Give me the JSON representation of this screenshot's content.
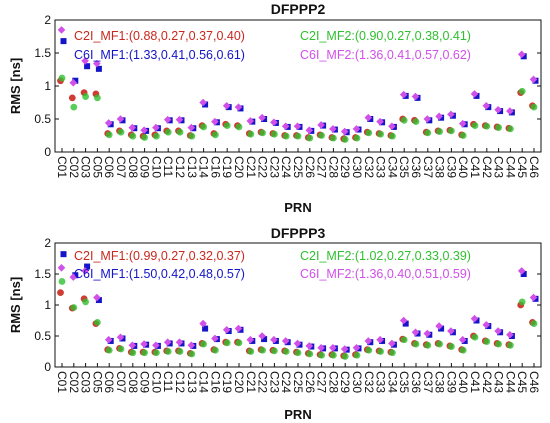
{
  "chart_data": [
    {
      "type": "scatter",
      "title": "DFPPP2",
      "xlabel": "PRN",
      "ylabel": "RMS [ns]",
      "ylim": [
        0,
        2
      ],
      "yticks": [
        "0",
        "0.5",
        "1",
        "1.5",
        "2"
      ],
      "grid": false,
      "legend_location": "top",
      "categories": [
        "C01",
        "C02",
        "C03",
        "C05",
        "C06",
        "C07",
        "C08",
        "C09",
        "C10",
        "C11",
        "C12",
        "C13",
        "C14",
        "C16",
        "C19",
        "C20",
        "C21",
        "C22",
        "C23",
        "C24",
        "C25",
        "C26",
        "C27",
        "C28",
        "C29",
        "C30",
        "C32",
        "C33",
        "C34",
        "C35",
        "C36",
        "C37",
        "C38",
        "C39",
        "C40",
        "C41",
        "C42",
        "C43",
        "C44",
        "C45",
        "C46"
      ],
      "series": [
        {
          "name": "C2I_MF1:(0.88,0.27,0.37,0.40)",
          "color": "#c8281e",
          "marker": "circle",
          "values": [
            1.08,
            0.82,
            0.9,
            0.88,
            0.28,
            0.32,
            0.26,
            0.24,
            0.26,
            0.32,
            0.32,
            0.25,
            0.4,
            0.28,
            0.42,
            0.4,
            0.28,
            0.3,
            0.28,
            0.25,
            0.25,
            0.22,
            0.26,
            0.22,
            0.2,
            0.22,
            0.3,
            0.28,
            0.25,
            0.5,
            0.48,
            0.3,
            0.32,
            0.33,
            0.26,
            0.42,
            0.4,
            0.38,
            0.36,
            0.9,
            0.7
          ]
        },
        {
          "name": "C2I_MF2:(0.90,0.27,0.38,0.41)",
          "color": "#2fbf2f",
          "marker": "circle",
          "values": [
            1.12,
            0.68,
            0.84,
            0.82,
            0.26,
            0.3,
            0.24,
            0.22,
            0.24,
            0.3,
            0.3,
            0.24,
            0.38,
            0.26,
            0.4,
            0.38,
            0.27,
            0.29,
            0.27,
            0.24,
            0.24,
            0.21,
            0.25,
            0.21,
            0.19,
            0.21,
            0.29,
            0.27,
            0.24,
            0.48,
            0.46,
            0.29,
            0.31,
            0.32,
            0.25,
            0.4,
            0.39,
            0.37,
            0.35,
            0.92,
            0.68
          ]
        },
        {
          "name": "C6I_MF1:(1.33,0.41,0.56,0.61)",
          "color": "#1414c8",
          "marker": "square",
          "values": [
            1.68,
            1.08,
            1.3,
            1.26,
            0.42,
            0.48,
            0.36,
            0.32,
            0.36,
            0.48,
            0.48,
            0.36,
            0.72,
            0.45,
            0.68,
            0.66,
            0.46,
            0.5,
            0.44,
            0.38,
            0.38,
            0.32,
            0.4,
            0.34,
            0.3,
            0.34,
            0.5,
            0.45,
            0.38,
            0.85,
            0.82,
            0.48,
            0.52,
            0.55,
            0.42,
            0.85,
            0.68,
            0.62,
            0.6,
            1.45,
            1.08
          ]
        },
        {
          "name": "C6I_MF2:(1.36,0.41,0.57,0.62)",
          "color": "#d050e8",
          "marker": "diamond",
          "values": [
            1.85,
            1.05,
            1.38,
            1.34,
            0.44,
            0.5,
            0.37,
            0.33,
            0.37,
            0.49,
            0.49,
            0.37,
            0.75,
            0.46,
            0.7,
            0.68,
            0.47,
            0.52,
            0.45,
            0.39,
            0.39,
            0.33,
            0.41,
            0.35,
            0.31,
            0.35,
            0.52,
            0.46,
            0.39,
            0.87,
            0.84,
            0.5,
            0.54,
            0.57,
            0.43,
            0.88,
            0.7,
            0.64,
            0.62,
            1.48,
            1.1
          ]
        }
      ]
    },
    {
      "type": "scatter",
      "title": "DFPPP3",
      "xlabel": "PRN",
      "ylabel": "RMS [ns]",
      "ylim": [
        0,
        2
      ],
      "yticks": [
        "0",
        "0.5",
        "1",
        "1.5",
        "2"
      ],
      "grid": false,
      "legend_location": "top",
      "categories": [
        "C01",
        "C02",
        "C03",
        "C05",
        "C06",
        "C07",
        "C08",
        "C09",
        "C10",
        "C11",
        "C12",
        "C13",
        "C14",
        "C16",
        "C19",
        "C20",
        "C21",
        "C22",
        "C23",
        "C24",
        "C25",
        "C26",
        "C27",
        "C28",
        "C29",
        "C30",
        "C32",
        "C33",
        "C34",
        "C35",
        "C36",
        "C37",
        "C38",
        "C39",
        "C40",
        "C41",
        "C42",
        "C43",
        "C44",
        "C45",
        "C46"
      ],
      "series": [
        {
          "name": "C2I_MF1:(0.99,0.27,0.32,0.37)",
          "color": "#c8281e",
          "marker": "circle",
          "values": [
            1.2,
            0.95,
            1.1,
            0.7,
            0.28,
            0.3,
            0.24,
            0.24,
            0.24,
            0.26,
            0.26,
            0.22,
            0.38,
            0.28,
            0.4,
            0.4,
            0.26,
            0.28,
            0.27,
            0.26,
            0.24,
            0.22,
            0.2,
            0.2,
            0.18,
            0.2,
            0.28,
            0.26,
            0.24,
            0.45,
            0.38,
            0.36,
            0.38,
            0.34,
            0.28,
            0.5,
            0.42,
            0.38,
            0.36,
            1.0,
            0.72
          ]
        },
        {
          "name": "C2I_MF2:(1.02,0.27,0.33,0.39)",
          "color": "#2fbf2f",
          "marker": "circle",
          "values": [
            1.38,
            0.96,
            1.05,
            0.72,
            0.27,
            0.29,
            0.23,
            0.23,
            0.23,
            0.25,
            0.25,
            0.21,
            0.37,
            0.27,
            0.39,
            0.39,
            0.25,
            0.27,
            0.26,
            0.25,
            0.23,
            0.21,
            0.19,
            0.19,
            0.17,
            0.19,
            0.27,
            0.25,
            0.23,
            0.44,
            0.37,
            0.35,
            0.37,
            0.33,
            0.27,
            0.48,
            0.41,
            0.37,
            0.35,
            1.05,
            0.7
          ]
        },
        {
          "name": "C6I_MF1:(1.50,0.42,0.48,0.57)",
          "color": "#1414c8",
          "marker": "square",
          "values": [
            1.82,
            1.48,
            1.62,
            1.08,
            0.42,
            0.46,
            0.34,
            0.36,
            0.34,
            0.38,
            0.38,
            0.34,
            0.62,
            0.45,
            0.58,
            0.6,
            0.42,
            0.45,
            0.42,
            0.4,
            0.36,
            0.33,
            0.3,
            0.3,
            0.28,
            0.3,
            0.4,
            0.42,
            0.36,
            0.7,
            0.54,
            0.52,
            0.62,
            0.56,
            0.42,
            0.75,
            0.66,
            0.56,
            0.5,
            1.5,
            1.1
          ]
        },
        {
          "name": "C6I_MF2:(1.36,0.40,0.51,0.59)",
          "color": "#d050e8",
          "marker": "diamond",
          "values": [
            1.6,
            1.45,
            1.55,
            1.12,
            0.44,
            0.48,
            0.35,
            0.37,
            0.35,
            0.4,
            0.4,
            0.35,
            0.7,
            0.46,
            0.6,
            0.62,
            0.44,
            0.5,
            0.44,
            0.42,
            0.38,
            0.34,
            0.31,
            0.31,
            0.29,
            0.31,
            0.42,
            0.44,
            0.38,
            0.75,
            0.56,
            0.54,
            0.66,
            0.58,
            0.44,
            0.78,
            0.68,
            0.58,
            0.52,
            1.55,
            1.12
          ]
        }
      ]
    }
  ]
}
